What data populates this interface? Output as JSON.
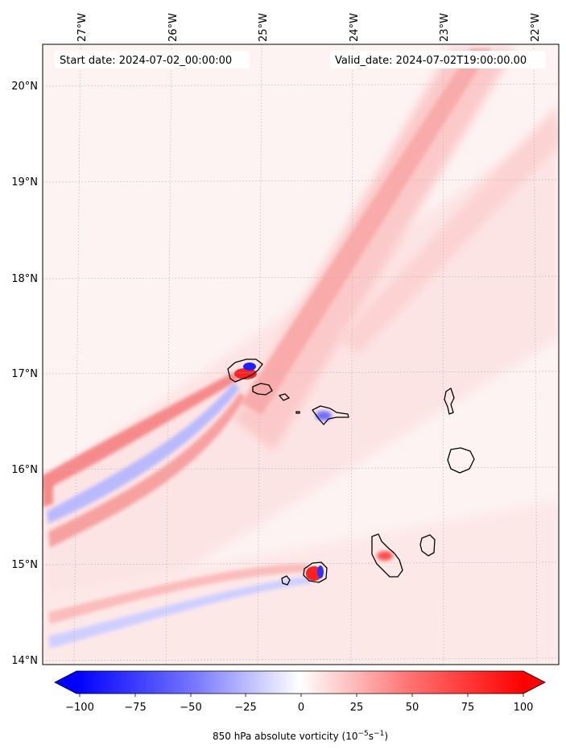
{
  "header": {
    "start_date": "Start date: 2024-07-02_00:00:00",
    "valid_date": "Valid_date: 2024-07-02T19:00:00.00"
  },
  "axes": {
    "lon_labels": [
      "27°W",
      "26°W",
      "25°W",
      "24°W",
      "23°W",
      "22°W"
    ],
    "lat_labels": [
      "20°N",
      "19°N",
      "18°N",
      "17°N",
      "16°N",
      "15°N",
      "14°N"
    ]
  },
  "colorbar": {
    "ticks": [
      "−100",
      "−75",
      "−50",
      "−25",
      "0",
      "25",
      "50",
      "75",
      "100"
    ],
    "label_main": "850 hPa absolute vorticity (10",
    "label_exp1": "−5",
    "label_mid": "s",
    "label_exp2": "−1",
    "label_end": ")",
    "min": -100,
    "max": 100,
    "color_low": "#0000ff",
    "color_mid": "#ffffff",
    "color_high": "#ff0000"
  },
  "map": {
    "extent": {
      "lon_min": -27.35,
      "lon_max": -21.8,
      "lat_min": 13.95,
      "lat_max": 20.45
    },
    "features": [
      "Santo Antão",
      "São Vicente",
      "Santa Luzia",
      "São Nicolau",
      "Sal",
      "Boa Vista",
      "Maio",
      "Santiago",
      "Fogo",
      "Brava"
    ]
  }
}
